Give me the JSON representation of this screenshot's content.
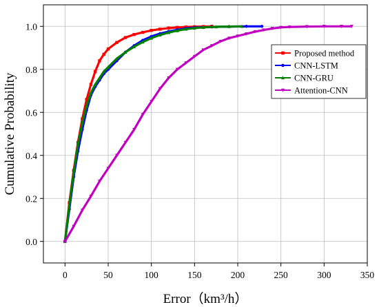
{
  "chart_data": {
    "type": "line",
    "title": "",
    "xlabel": "Error（km³/h）",
    "ylabel": "Cumulative Probability",
    "xlim": [
      -25,
      350
    ],
    "ylim": [
      -0.1,
      1.1
    ],
    "x_ticks": [
      "0",
      "50",
      "100",
      "150",
      "200",
      "250",
      "300",
      "350"
    ],
    "y_ticks": [
      "0.0",
      "0.2",
      "0.4",
      "0.6",
      "0.8",
      "1.0"
    ],
    "grid": true,
    "legend_position": "right",
    "series": [
      {
        "name": "Proposed method",
        "color": "#ff0000",
        "marker": "square",
        "x": [
          0,
          5,
          10,
          15,
          20,
          25,
          30,
          35,
          40,
          45,
          50,
          60,
          70,
          80,
          90,
          100,
          110,
          120,
          130,
          140,
          150,
          160,
          170
        ],
        "y": [
          0,
          0.18,
          0.33,
          0.46,
          0.57,
          0.66,
          0.73,
          0.79,
          0.84,
          0.87,
          0.895,
          0.925,
          0.948,
          0.962,
          0.972,
          0.981,
          0.987,
          0.992,
          0.995,
          0.997,
          0.998,
          0.999,
          1.0
        ]
      },
      {
        "name": "CNN-LSTM",
        "color": "#0000ff",
        "marker": "circle",
        "x": [
          0,
          5,
          10,
          15,
          20,
          25,
          30,
          35,
          40,
          45,
          50,
          60,
          70,
          80,
          90,
          100,
          110,
          120,
          130,
          140,
          150,
          170,
          190,
          210,
          228
        ],
        "y": [
          0,
          0.15,
          0.3,
          0.42,
          0.52,
          0.61,
          0.68,
          0.72,
          0.75,
          0.78,
          0.8,
          0.84,
          0.88,
          0.91,
          0.935,
          0.953,
          0.966,
          0.976,
          0.984,
          0.99,
          0.994,
          0.997,
          0.999,
          1.0,
          1.0
        ]
      },
      {
        "name": "CNN-GRU",
        "color": "#008000",
        "marker": "triangle-up",
        "x": [
          0,
          5,
          10,
          15,
          20,
          25,
          30,
          35,
          40,
          45,
          50,
          60,
          70,
          80,
          90,
          100,
          110,
          120,
          130,
          140,
          150,
          160,
          175,
          190,
          205
        ],
        "y": [
          0,
          0.17,
          0.32,
          0.45,
          0.55,
          0.63,
          0.69,
          0.73,
          0.76,
          0.79,
          0.81,
          0.85,
          0.88,
          0.905,
          0.927,
          0.945,
          0.96,
          0.971,
          0.98,
          0.987,
          0.992,
          0.995,
          0.998,
          0.999,
          1.0
        ]
      },
      {
        "name": "Attention-CNN",
        "color": "#c000c0",
        "marker": "triangle-down",
        "x": [
          0,
          10,
          20,
          30,
          40,
          50,
          60,
          70,
          80,
          90,
          100,
          110,
          120,
          130,
          140,
          150,
          160,
          170,
          180,
          190,
          200,
          210,
          220,
          230,
          240,
          250,
          260,
          280,
          300,
          320,
          332
        ],
        "y": [
          0,
          0.07,
          0.145,
          0.21,
          0.28,
          0.34,
          0.4,
          0.46,
          0.52,
          0.59,
          0.65,
          0.71,
          0.76,
          0.8,
          0.83,
          0.86,
          0.89,
          0.91,
          0.93,
          0.945,
          0.955,
          0.965,
          0.975,
          0.983,
          0.99,
          0.995,
          0.997,
          0.999,
          1.0,
          1.0,
          1.0
        ]
      }
    ]
  }
}
